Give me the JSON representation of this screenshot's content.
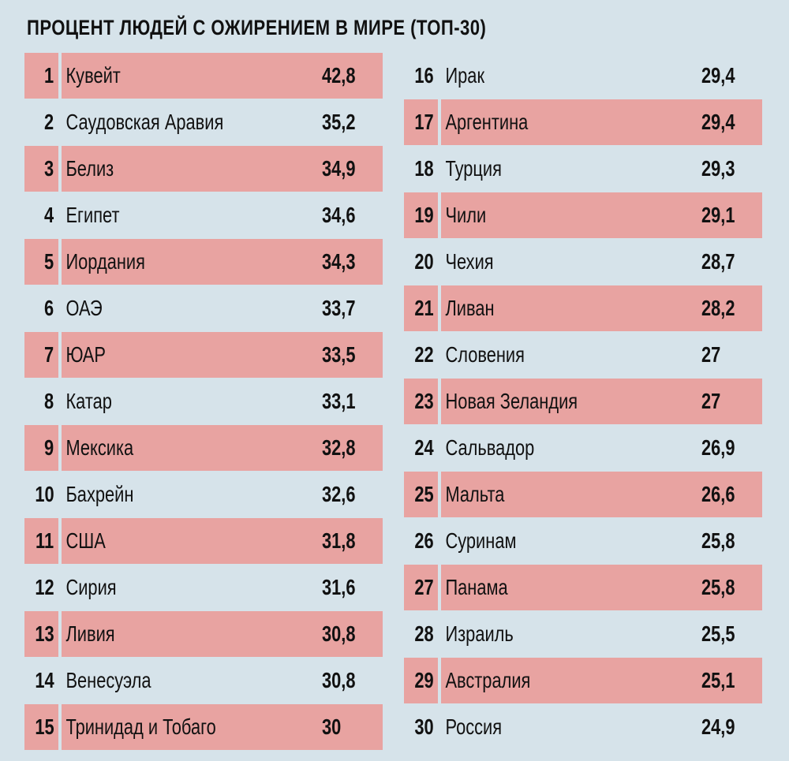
{
  "title": "ПРОЦЕНТ ЛЮДЕЙ С ОЖИРЕНИЕМ В МИРЕ (ТОП-30)",
  "colors": {
    "background": "#d6e3ea",
    "highlight": "#e8a3a1",
    "text": "#111111"
  },
  "rows": [
    {
      "rank": "1",
      "country": "Кувейт",
      "value": "42,8"
    },
    {
      "rank": "2",
      "country": "Саудовская Аравия",
      "value": "35,2"
    },
    {
      "rank": "3",
      "country": "Белиз",
      "value": "34,9"
    },
    {
      "rank": "4",
      "country": "Египет",
      "value": "34,6"
    },
    {
      "rank": "5",
      "country": "Иордания",
      "value": "34,3"
    },
    {
      "rank": "6",
      "country": "ОАЭ",
      "value": "33,7"
    },
    {
      "rank": "7",
      "country": "ЮАР",
      "value": "33,5"
    },
    {
      "rank": "8",
      "country": "Катар",
      "value": "33,1"
    },
    {
      "rank": "9",
      "country": "Мексика",
      "value": "32,8"
    },
    {
      "rank": "10",
      "country": "Бахрейн",
      "value": "32,6"
    },
    {
      "rank": "11",
      "country": "США",
      "value": "31,8"
    },
    {
      "rank": "12",
      "country": "Сирия",
      "value": "31,6"
    },
    {
      "rank": "13",
      "country": "Ливия",
      "value": "30,8"
    },
    {
      "rank": "14",
      "country": "Венесуэла",
      "value": "30,8"
    },
    {
      "rank": "15",
      "country": "Тринидад и Тобаго",
      "value": "30"
    },
    {
      "rank": "16",
      "country": "Ирак",
      "value": "29,4"
    },
    {
      "rank": "17",
      "country": "Аргентина",
      "value": "29,4"
    },
    {
      "rank": "18",
      "country": "Турция",
      "value": "29,3"
    },
    {
      "rank": "19",
      "country": "Чили",
      "value": "29,1"
    },
    {
      "rank": "20",
      "country": "Чехия",
      "value": "28,7"
    },
    {
      "rank": "21",
      "country": "Ливан",
      "value": "28,2"
    },
    {
      "rank": "22",
      "country": "Словения",
      "value": "27"
    },
    {
      "rank": "23",
      "country": "Новая Зеландия",
      "value": "27"
    },
    {
      "rank": "24",
      "country": "Сальвадор",
      "value": "26,9"
    },
    {
      "rank": "25",
      "country": "Мальта",
      "value": "26,6"
    },
    {
      "rank": "26",
      "country": "Суринам",
      "value": "25,8"
    },
    {
      "rank": "27",
      "country": "Панама",
      "value": "25,8"
    },
    {
      "rank": "28",
      "country": "Израиль",
      "value": "25,5"
    },
    {
      "rank": "29",
      "country": "Австралия",
      "value": "25,1"
    },
    {
      "rank": "30",
      "country": "Россия",
      "value": "24,9"
    }
  ],
  "chart_data": {
    "type": "table",
    "title": "ПРОЦЕНТ ЛЮДЕЙ С ОЖИРЕНИЕМ В МИРЕ (ТОП-30)",
    "columns": [
      "rank",
      "country",
      "percent"
    ],
    "categories": [
      "Кувейт",
      "Саудовская Аравия",
      "Белиз",
      "Египет",
      "Иордания",
      "ОАЭ",
      "ЮАР",
      "Катар",
      "Мексика",
      "Бахрейн",
      "США",
      "Сирия",
      "Ливия",
      "Венесуэла",
      "Тринидад и Тобаго",
      "Ирак",
      "Аргентина",
      "Турция",
      "Чили",
      "Чехия",
      "Ливан",
      "Словения",
      "Новая Зеландия",
      "Сальвадор",
      "Мальта",
      "Суринам",
      "Панама",
      "Израиль",
      "Австралия",
      "Россия"
    ],
    "values": [
      42.8,
      35.2,
      34.9,
      34.6,
      34.3,
      33.7,
      33.5,
      33.1,
      32.8,
      32.6,
      31.8,
      31.6,
      30.8,
      30.8,
      30,
      29.4,
      29.4,
      29.3,
      29.1,
      28.7,
      28.2,
      27,
      27,
      26.9,
      26.6,
      25.8,
      25.8,
      25.5,
      25.1,
      24.9
    ],
    "layout": "two columns of 15 rows, alternating highlighted rows"
  }
}
